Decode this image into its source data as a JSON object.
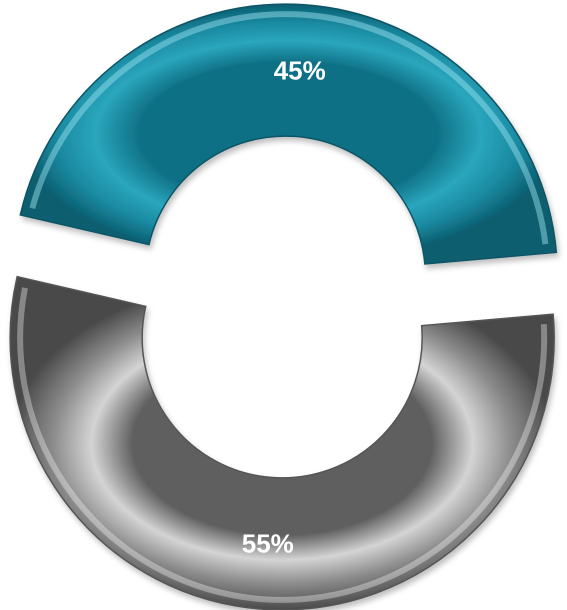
{
  "chart_data": {
    "type": "pie",
    "variant": "donut",
    "categories": [
      "",
      ""
    ],
    "values": [
      45,
      55
    ],
    "labels": [
      "45%",
      "55%"
    ],
    "colors": [
      "#1f96ad",
      "#8a8a8a"
    ],
    "legend": "none",
    "title": ""
  }
}
